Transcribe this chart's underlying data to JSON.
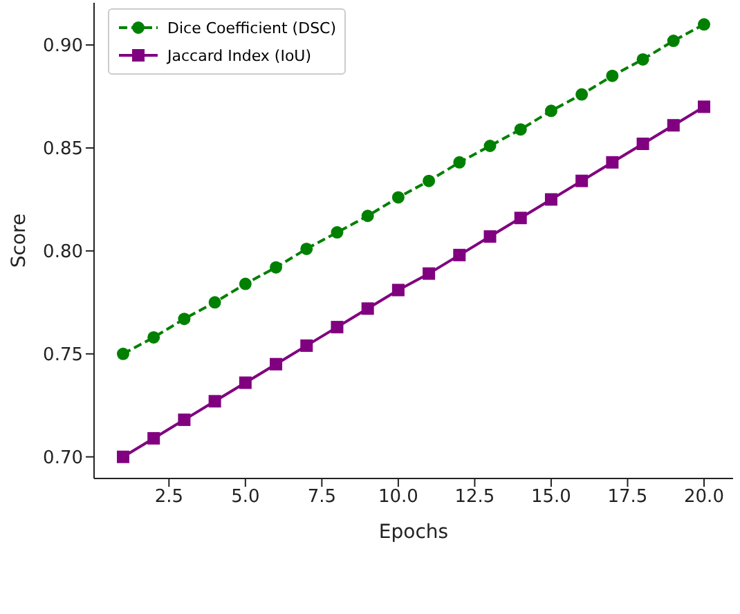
{
  "chart_data": {
    "type": "line",
    "xlabel": "Epochs",
    "ylabel": "Score",
    "x": [
      1,
      2,
      3,
      4,
      5,
      6,
      7,
      8,
      9,
      10,
      11,
      12,
      13,
      14,
      15,
      16,
      17,
      18,
      19,
      20
    ],
    "series": [
      {
        "name": "Dice Coefficient (DSC)",
        "color": "#008000",
        "marker": "circle",
        "line_style": "dashed",
        "values": [
          0.75,
          0.758,
          0.767,
          0.775,
          0.784,
          0.792,
          0.801,
          0.809,
          0.817,
          0.826,
          0.834,
          0.843,
          0.851,
          0.859,
          0.868,
          0.876,
          0.885,
          0.893,
          0.902,
          0.91
        ]
      },
      {
        "name": "Jaccard Index (IoU)",
        "color": "#800080",
        "marker": "square",
        "line_style": "solid",
        "values": [
          0.7,
          0.709,
          0.718,
          0.727,
          0.736,
          0.745,
          0.754,
          0.763,
          0.772,
          0.781,
          0.789,
          0.798,
          0.807,
          0.816,
          0.825,
          0.834,
          0.843,
          0.852,
          0.861,
          0.87
        ]
      }
    ],
    "xlim": [
      0.05,
      20.95
    ],
    "xticks": [
      {
        "value": 2.5,
        "label": "2.5"
      },
      {
        "value": 5,
        "label": "5.0"
      },
      {
        "value": 7.5,
        "label": "7.5"
      },
      {
        "value": 10,
        "label": "10.0"
      },
      {
        "value": 12.5,
        "label": "12.5"
      },
      {
        "value": 15,
        "label": "15.0"
      },
      {
        "value": 17.5,
        "label": "17.5"
      },
      {
        "value": 20,
        "label": "20.0"
      }
    ],
    "ylim": [
      0.6895,
      0.9205
    ],
    "yticks": [
      {
        "value": 0.7,
        "label": "0.70"
      },
      {
        "value": 0.75,
        "label": "0.75"
      },
      {
        "value": 0.8,
        "label": "0.80"
      },
      {
        "value": 0.85,
        "label": "0.85"
      },
      {
        "value": 0.9,
        "label": "0.90"
      }
    ],
    "grid": false,
    "legend": "top left"
  }
}
